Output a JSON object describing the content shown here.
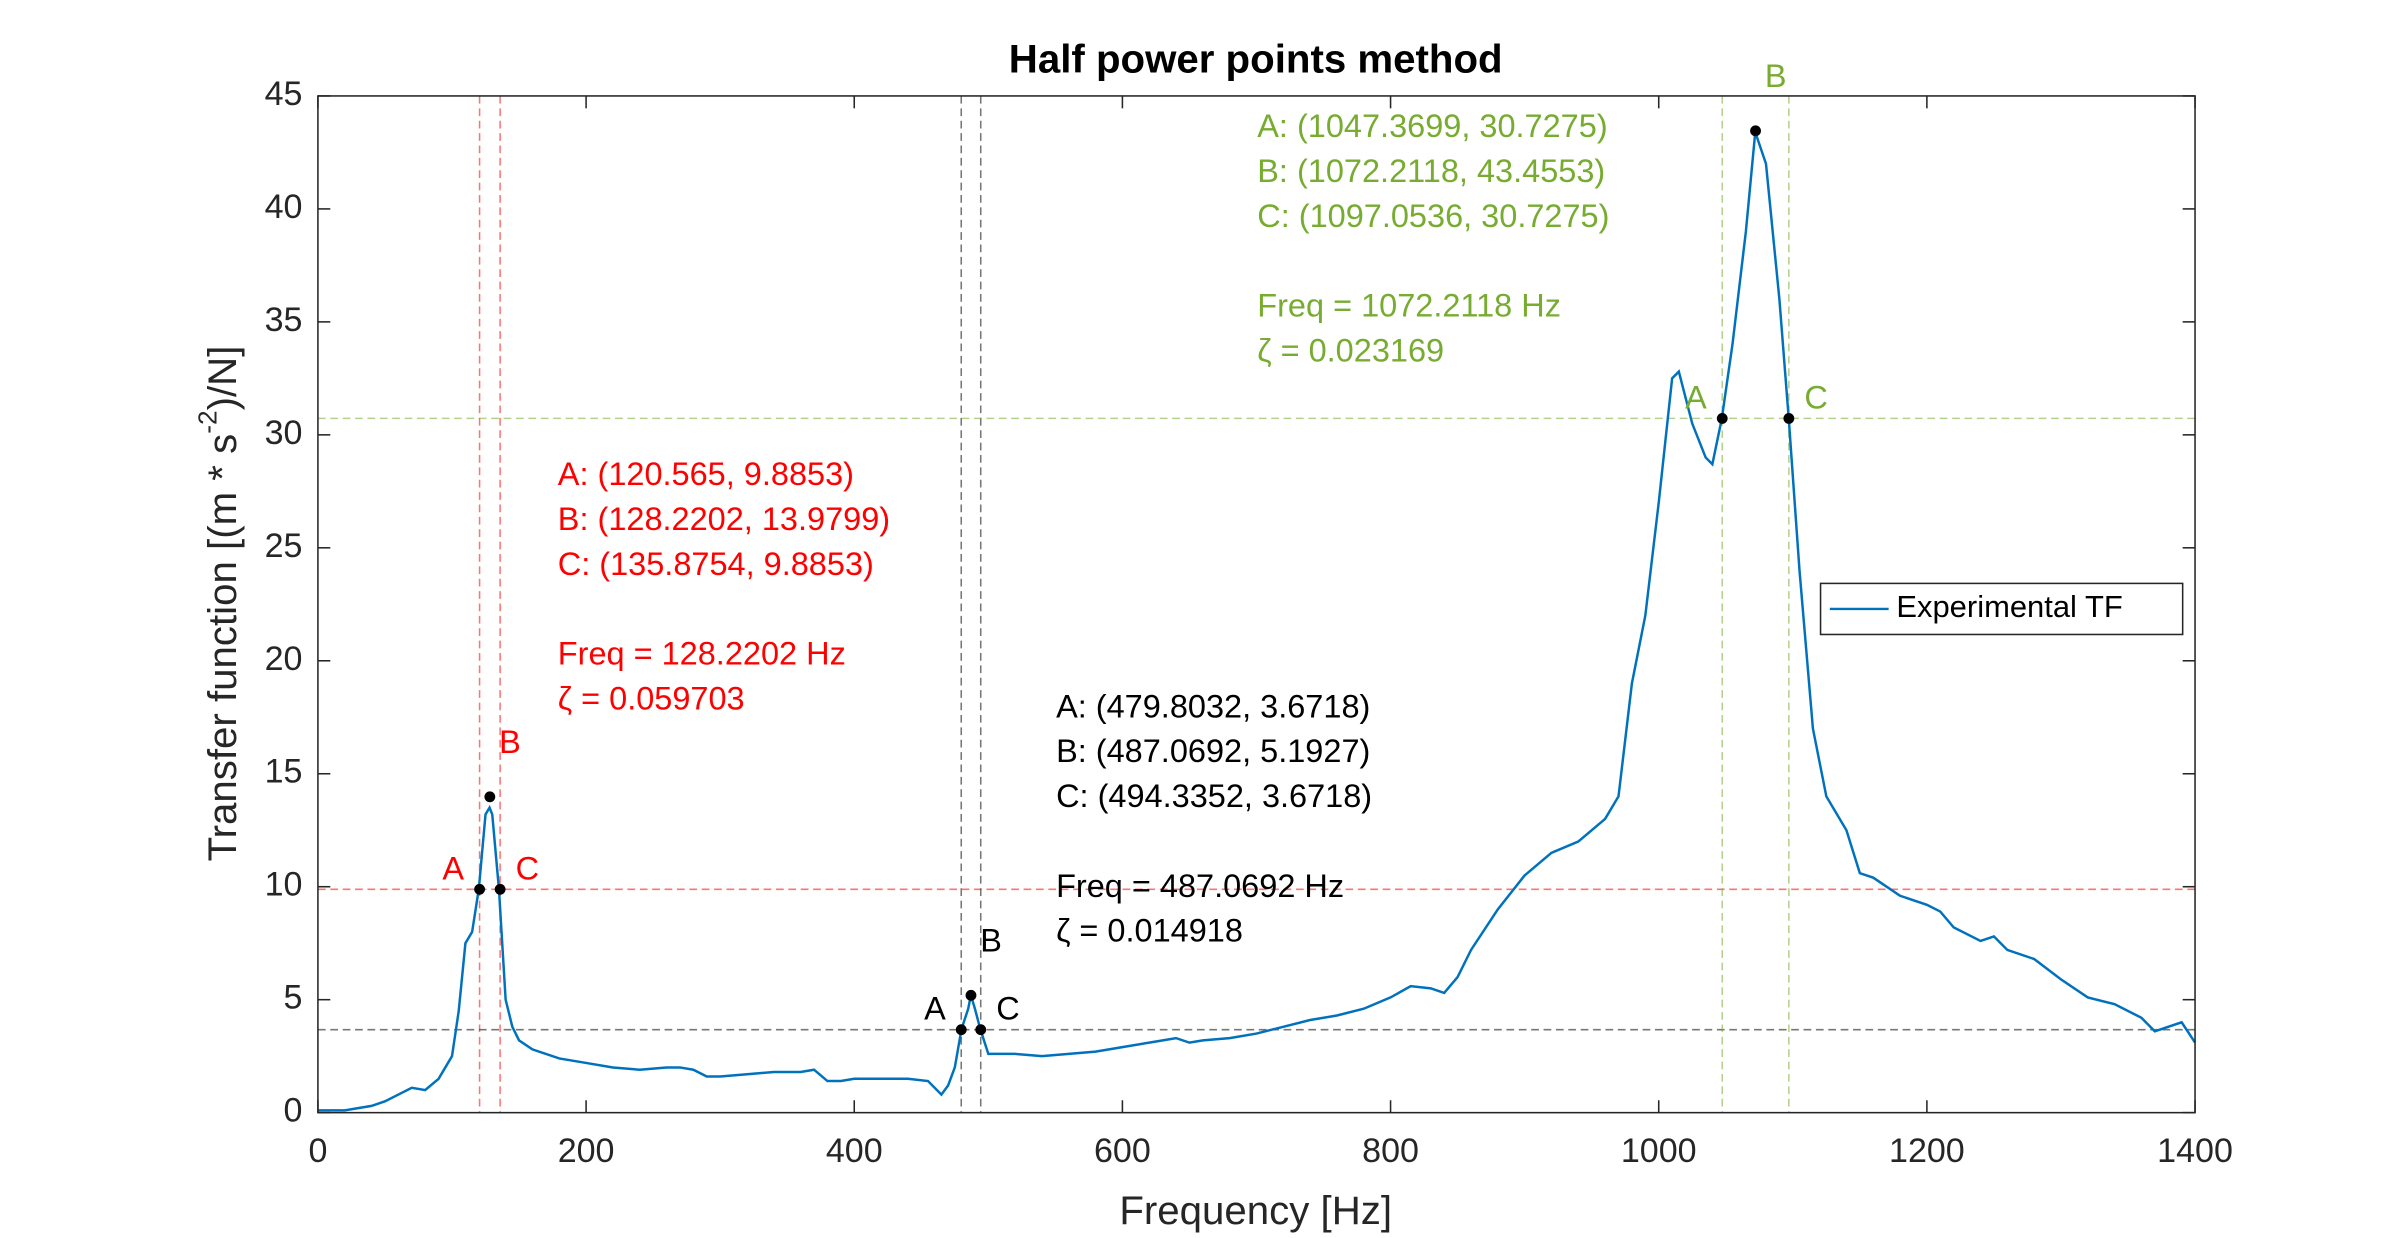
{
  "chart_data": {
    "type": "line",
    "title": "Half power points method",
    "x_label": "Frequency [Hz]",
    "y_label": [
      "Transfer function [(m * s",
      "-2",
      ")/N]"
    ],
    "xlim": [
      0,
      1400
    ],
    "ylim": [
      0,
      45
    ],
    "xticks": [
      0,
      200,
      400,
      600,
      800,
      1000,
      1200,
      1400
    ],
    "yticks": [
      0,
      5,
      10,
      15,
      20,
      25,
      30,
      35,
      40,
      45
    ],
    "legend_position": "right",
    "series": [
      {
        "name": "Experimental TF",
        "color": "#0072bd",
        "x": [
          0,
          10,
          20,
          30,
          40,
          50,
          60,
          70,
          80,
          90,
          100,
          105,
          110,
          115,
          120,
          125,
          128,
          130,
          135,
          140,
          145,
          150,
          160,
          180,
          200,
          220,
          240,
          260,
          270,
          280,
          290,
          300,
          320,
          340,
          360,
          370,
          380,
          390,
          400,
          420,
          440,
          455,
          465,
          470,
          475,
          480,
          485,
          487,
          490,
          494,
          500,
          520,
          540,
          560,
          580,
          600,
          620,
          640,
          650,
          660,
          680,
          700,
          720,
          740,
          760,
          780,
          800,
          815,
          830,
          840,
          850,
          860,
          880,
          900,
          920,
          940,
          960,
          970,
          980,
          990,
          1000,
          1010,
          1015,
          1025,
          1035,
          1040,
          1047,
          1055,
          1065,
          1072,
          1080,
          1090,
          1097,
          1105,
          1115,
          1125,
          1140,
          1150,
          1160,
          1180,
          1200,
          1210,
          1220,
          1240,
          1250,
          1260,
          1280,
          1300,
          1320,
          1340,
          1360,
          1370,
          1390,
          1400
        ],
        "values": [
          0.1,
          0.1,
          0.1,
          0.2,
          0.3,
          0.5,
          0.8,
          1.1,
          1.0,
          1.5,
          2.5,
          4.5,
          7.5,
          8.0,
          9.9,
          13.2,
          13.5,
          13.2,
          9.9,
          5.0,
          3.8,
          3.2,
          2.8,
          2.4,
          2.2,
          2.0,
          1.9,
          2.0,
          2.0,
          1.9,
          1.6,
          1.6,
          1.7,
          1.8,
          1.8,
          1.9,
          1.4,
          1.4,
          1.5,
          1.5,
          1.5,
          1.4,
          0.8,
          1.2,
          2.0,
          3.7,
          4.6,
          5.2,
          4.6,
          3.7,
          2.6,
          2.6,
          2.5,
          2.6,
          2.7,
          2.9,
          3.1,
          3.3,
          3.1,
          3.2,
          3.3,
          3.5,
          3.8,
          4.1,
          4.3,
          4.6,
          5.1,
          5.6,
          5.5,
          5.3,
          6.0,
          7.2,
          9.0,
          10.5,
          11.5,
          12.0,
          13.0,
          14.0,
          19.0,
          22.0,
          27.0,
          32.5,
          32.8,
          30.5,
          29.0,
          28.7,
          30.7,
          34.0,
          39.0,
          43.4,
          42.0,
          36.0,
          30.7,
          24.0,
          17.0,
          14.0,
          12.5,
          10.6,
          10.4,
          9.6,
          9.2,
          8.9,
          8.2,
          7.6,
          7.8,
          7.2,
          6.8,
          5.9,
          5.1,
          4.8,
          4.2,
          3.6,
          4.0,
          3.1
        ]
      }
    ],
    "peaks": [
      {
        "color": "#ff0000",
        "labels": [
          "A",
          "B",
          "C"
        ],
        "x": [
          120.565,
          128.2202,
          135.8754
        ],
        "y": [
          9.8853,
          13.9799,
          9.8853
        ],
        "points_text": [
          "A: (120.565, 9.8853)",
          "B: (128.2202, 13.9799)",
          "C: (135.8754, 9.8853)"
        ],
        "result_text": [
          "Freq = 128.2202 Hz",
          "ζ = 0.059703"
        ]
      },
      {
        "color": "#000000",
        "labels": [
          "A",
          "B",
          "C"
        ],
        "x": [
          479.8032,
          487.0692,
          494.3352
        ],
        "y": [
          3.6718,
          5.1927,
          3.6718
        ],
        "points_text": [
          "A: (479.8032, 3.6718)",
          "B: (487.0692, 5.1927)",
          "C: (494.3352, 3.6718)"
        ],
        "result_text": [
          "Freq = 487.0692 Hz",
          "ζ = 0.014918"
        ]
      },
      {
        "color": "#77ac30",
        "labels": [
          "A",
          "B",
          "C"
        ],
        "x": [
          1047.3699,
          1072.2118,
          1097.0536
        ],
        "y": [
          30.7275,
          43.4553,
          30.7275
        ],
        "points_text": [
          "A: (1047.3699, 30.7275)",
          "B: (1072.2118, 43.4553)",
          "C: (1097.0536, 30.7275)"
        ],
        "result_text": [
          "Freq = 1072.2118 Hz",
          "ζ = 0.023169"
        ]
      }
    ]
  }
}
